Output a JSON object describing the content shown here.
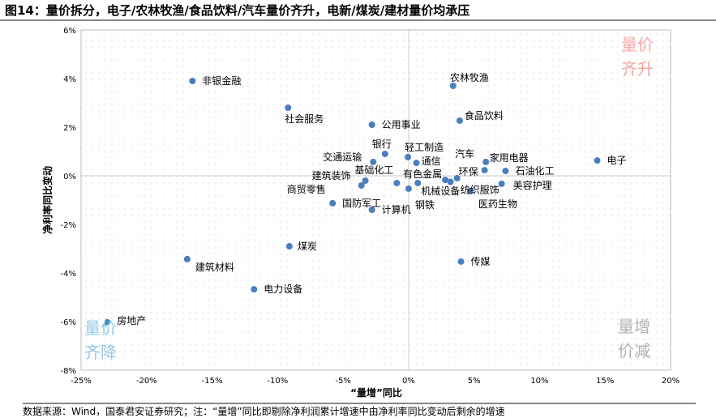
{
  "title": "图14：量价拆分，电子/农林牧渔/食品饮料/汽车量价齐升，电新/煤炭/建材量价均承压",
  "source": "数据来源：Wind，国泰君安证券研究；注：“量增”同比即剔除净利润累计增速中由净利率同比变动后剩余的增速",
  "chart_data": {
    "type": "scatter",
    "xlabel": "“量增”同比",
    "ylabel": "净利率同比变动",
    "xlim": [
      -25,
      20
    ],
    "ylim": [
      -8,
      6
    ],
    "xticks": [
      "-25%",
      "-20%",
      "-15%",
      "-10%",
      "-5%",
      "0%",
      "5%",
      "10%",
      "15%",
      "20%"
    ],
    "yticks": [
      "-8%",
      "-6%",
      "-4%",
      "-2%",
      "0%",
      "2%",
      "4%",
      "6%"
    ],
    "quadrants": {
      "top_right": "量价齐升",
      "bottom_left": "量价齐降",
      "bottom_right": "量增价减"
    },
    "colors": {
      "point": "#4a7ebf",
      "top_right": "#f4a6a6",
      "bottom_left": "#8fc9e6",
      "bottom_right": "#b0b0b0"
    },
    "points": [
      {
        "label": "非银金融",
        "x": -16.5,
        "y": 3.9
      },
      {
        "label": "农林牧渔",
        "x": 3.4,
        "y": 3.7
      },
      {
        "label": "社会服务",
        "x": -9.2,
        "y": 2.8
      },
      {
        "label": "食品饮料",
        "x": 3.9,
        "y": 2.27
      },
      {
        "label": "公用事业",
        "x": -2.8,
        "y": 2.1
      },
      {
        "label": "银行",
        "x": -1.8,
        "y": 0.9
      },
      {
        "label": "轻工制造",
        "x": -0.05,
        "y": 0.77
      },
      {
        "label": "交通运输",
        "x": -2.7,
        "y": 0.57
      },
      {
        "label": "通信",
        "x": 0.6,
        "y": 0.53
      },
      {
        "label": "汽车",
        "x": 5.9,
        "y": 0.57
      },
      {
        "label": "家用电器",
        "x": 5.8,
        "y": 0.23
      },
      {
        "label": "石油化工",
        "x": 7.4,
        "y": 0.2
      },
      {
        "label": "电子",
        "x": 14.4,
        "y": 0.63
      },
      {
        "label": "建筑装饰",
        "x": -3.3,
        "y": -0.2
      },
      {
        "label": "商贸零售",
        "x": -3.6,
        "y": -0.4
      },
      {
        "label": "基础化工",
        "x": -0.9,
        "y": -0.3
      },
      {
        "label": "有色金属",
        "x": 2.8,
        "y": -0.17
      },
      {
        "label": "环保",
        "x": 3.7,
        "y": -0.1
      },
      {
        "label": "纺织服饰",
        "x": 3.2,
        "y": -0.25
      },
      {
        "label": "机械设备",
        "x": 0.7,
        "y": -0.3
      },
      {
        "label": "钢铁",
        "x": 0.0,
        "y": -0.53
      },
      {
        "label": "美容护理",
        "x": 7.1,
        "y": -0.33
      },
      {
        "label": "医药生物",
        "x": 4.7,
        "y": -0.63
      },
      {
        "label": "国防军工",
        "x": -5.8,
        "y": -1.13
      },
      {
        "label": "计算机",
        "x": -2.8,
        "y": -1.4
      },
      {
        "label": "煤炭",
        "x": -9.1,
        "y": -2.9
      },
      {
        "label": "建筑材料",
        "x": -16.9,
        "y": -3.43
      },
      {
        "label": "传媒",
        "x": 4.0,
        "y": -3.53
      },
      {
        "label": "电力设备",
        "x": -11.8,
        "y": -4.67
      },
      {
        "label": "房地产",
        "x": -23.0,
        "y": -6.03
      }
    ]
  }
}
